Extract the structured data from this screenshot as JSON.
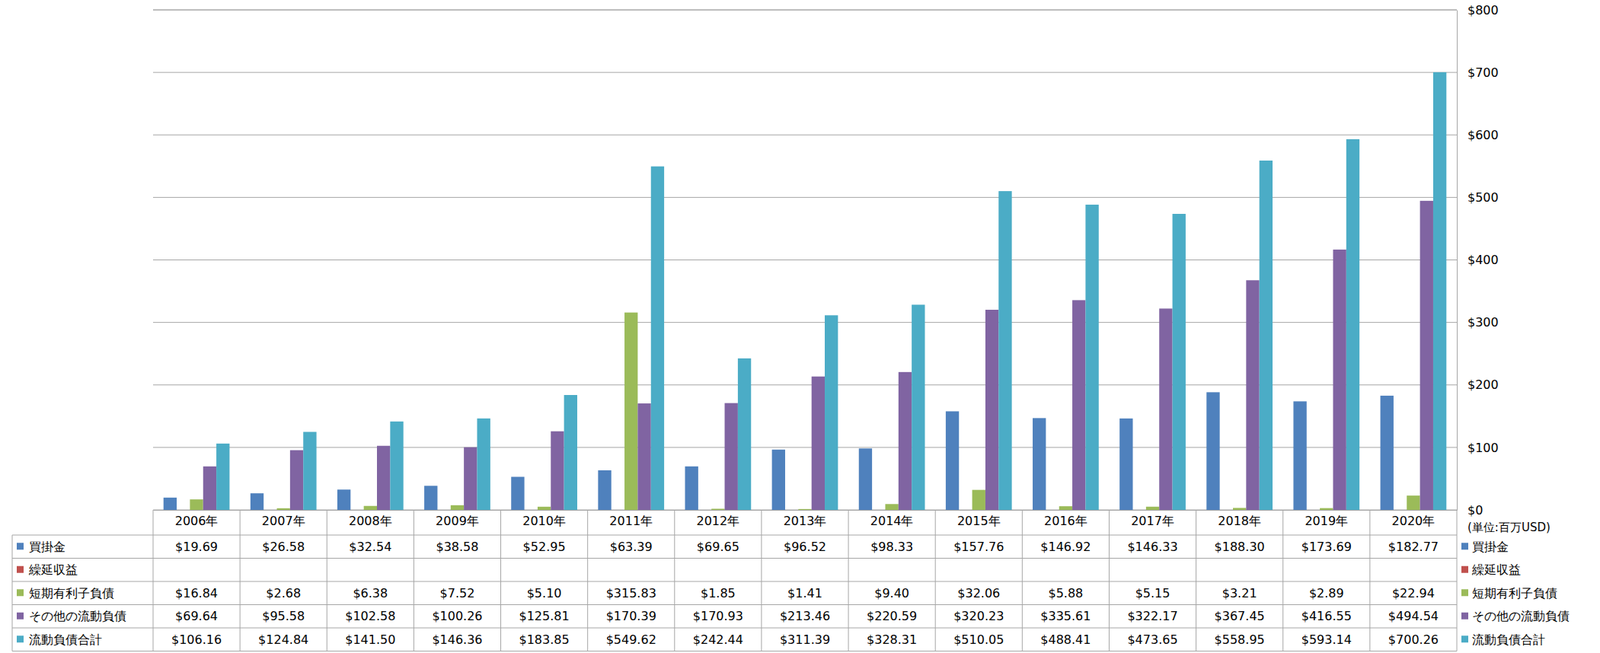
{
  "chart_data": {
    "type": "bar",
    "y_label": "(単位:百万USD)",
    "categories": [
      "2006年",
      "2007年",
      "2008年",
      "2009年",
      "2010年",
      "2011年",
      "2012年",
      "2013年",
      "2014年",
      "2015年",
      "2016年",
      "2017年",
      "2018年",
      "2019年",
      "2020年"
    ],
    "series": [
      {
        "name": "買掛金",
        "color": "#4F81BD",
        "values": [
          19.69,
          26.58,
          32.54,
          38.58,
          52.95,
          63.39,
          69.65,
          96.52,
          98.33,
          157.76,
          146.92,
          146.33,
          188.3,
          173.69,
          182.77
        ],
        "value_labels": [
          "$19.69",
          "$26.58",
          "$32.54",
          "$38.58",
          "$52.95",
          "$63.39",
          "$69.65",
          "$96.52",
          "$98.33",
          "$157.76",
          "$146.92",
          "$146.33",
          "$188.30",
          "$173.69",
          "$182.77"
        ]
      },
      {
        "name": "繰延収益",
        "color": "#C0504D",
        "values": [
          null,
          null,
          null,
          null,
          null,
          null,
          null,
          null,
          null,
          null,
          null,
          null,
          null,
          null,
          null
        ],
        "value_labels": [
          null,
          null,
          null,
          null,
          null,
          null,
          null,
          null,
          null,
          null,
          null,
          null,
          null,
          null,
          null
        ]
      },
      {
        "name": "短期有利子負債",
        "color": "#9BBB59",
        "values": [
          16.84,
          2.68,
          6.38,
          7.52,
          5.1,
          315.83,
          1.85,
          1.41,
          9.4,
          32.06,
          5.88,
          5.15,
          3.21,
          2.89,
          22.94
        ],
        "value_labels": [
          "$16.84",
          "$2.68",
          "$6.38",
          "$7.52",
          "$5.10",
          "$315.83",
          "$1.85",
          "$1.41",
          "$9.40",
          "$32.06",
          "$5.88",
          "$5.15",
          "$3.21",
          "$2.89",
          "$22.94"
        ]
      },
      {
        "name": "その他の流動負債",
        "color": "#8064A2",
        "values": [
          69.64,
          95.58,
          102.58,
          100.26,
          125.81,
          170.39,
          170.93,
          213.46,
          220.59,
          320.23,
          335.61,
          322.17,
          367.45,
          416.55,
          494.54
        ],
        "value_labels": [
          "$69.64",
          "$95.58",
          "$102.58",
          "$100.26",
          "$125.81",
          "$170.39",
          "$170.93",
          "$213.46",
          "$220.59",
          "$320.23",
          "$335.61",
          "$322.17",
          "$367.45",
          "$416.55",
          "$494.54"
        ]
      },
      {
        "name": "流動負債合計",
        "color": "#4BACC6",
        "values": [
          106.16,
          124.84,
          141.5,
          146.36,
          183.85,
          549.62,
          242.44,
          311.39,
          328.31,
          510.05,
          488.41,
          473.65,
          558.95,
          593.14,
          700.26
        ],
        "value_labels": [
          "$106.16",
          "$124.84",
          "$141.50",
          "$146.36",
          "$183.85",
          "$549.62",
          "$242.44",
          "$311.39",
          "$328.31",
          "$510.05",
          "$488.41",
          "$473.65",
          "$558.95",
          "$593.14",
          "$700.26"
        ]
      }
    ],
    "ylim": [
      0,
      800
    ],
    "yticks": [
      {
        "value": 0,
        "label": "$0"
      },
      {
        "value": 100,
        "label": "$100"
      },
      {
        "value": 200,
        "label": "$200"
      },
      {
        "value": 300,
        "label": "$300"
      },
      {
        "value": 400,
        "label": "$400"
      },
      {
        "value": 500,
        "label": "$500"
      },
      {
        "value": 600,
        "label": "$600"
      },
      {
        "value": 700,
        "label": "$700"
      },
      {
        "value": 800,
        "label": "$800"
      }
    ],
    "grid": true
  }
}
